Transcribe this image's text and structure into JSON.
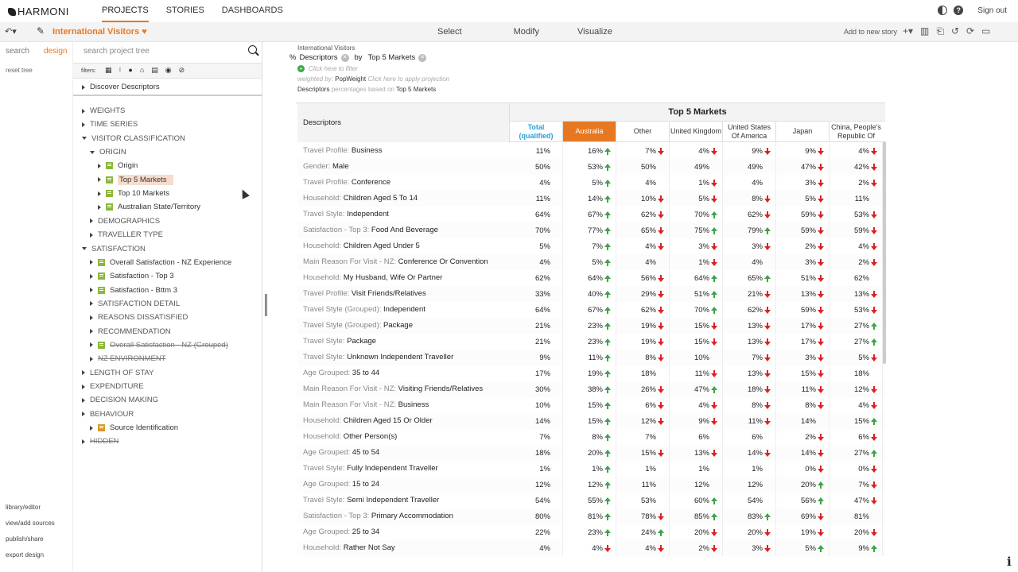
{
  "app": {
    "logo": "HARMONI"
  },
  "nav": {
    "items": [
      "PROJECTS",
      "STORIES",
      "DASHBOARDS"
    ],
    "active": 0
  },
  "topright": {
    "signout": "Sign out"
  },
  "toolbar": {
    "history_icon": "↶▾",
    "project_title": "International Visitors",
    "heart": "♥",
    "modes": [
      "Select",
      "Modify",
      "Visualize"
    ],
    "add_story": "Add to new story"
  },
  "left": {
    "tab_search": "search",
    "tab_design": "design",
    "reset_tree": "reset tree",
    "links": [
      "library/editor",
      "view/add sources",
      "publish/share",
      "export design"
    ]
  },
  "treepanel": {
    "search_placeholder": "search project tree",
    "filters_label": "filters:",
    "first_item": "Discover Descriptors",
    "items": [
      {
        "label": "WEIGHTS",
        "indent": 0,
        "type": "folder",
        "open": false
      },
      {
        "label": "TIME SERIES",
        "indent": 0,
        "type": "folder",
        "open": false
      },
      {
        "label": "VISITOR CLASSIFICATION",
        "indent": 0,
        "type": "folder",
        "open": true
      },
      {
        "label": "ORIGIN",
        "indent": 1,
        "type": "folder",
        "open": true
      },
      {
        "label": "Origin",
        "indent": 2,
        "type": "var",
        "open": false
      },
      {
        "label": "Top 5 Markets",
        "indent": 2,
        "type": "var",
        "open": false,
        "selected": true
      },
      {
        "label": "Top 10 Markets",
        "indent": 2,
        "type": "var",
        "open": false
      },
      {
        "label": "Australian State/Territory",
        "indent": 2,
        "type": "var",
        "open": false
      },
      {
        "label": "DEMOGRAPHICS",
        "indent": 1,
        "type": "folder",
        "open": false
      },
      {
        "label": "TRAVELLER TYPE",
        "indent": 1,
        "type": "folder",
        "open": false
      },
      {
        "label": "SATISFACTION",
        "indent": 0,
        "type": "folder",
        "open": true
      },
      {
        "label": "Overall Satisfaction - NZ Experience",
        "indent": 1,
        "type": "var",
        "open": false
      },
      {
        "label": "Satisfaction - Top 3",
        "indent": 1,
        "type": "var",
        "open": false
      },
      {
        "label": "Satisfaction - Bttm 3",
        "indent": 1,
        "type": "var",
        "open": false
      },
      {
        "label": "SATISFACTION DETAIL",
        "indent": 1,
        "type": "folder",
        "open": false
      },
      {
        "label": "REASONS DISSATISFIED",
        "indent": 1,
        "type": "folder",
        "open": false
      },
      {
        "label": "RECOMMENDATION",
        "indent": 1,
        "type": "folder",
        "open": false
      },
      {
        "label": "Overall Satisfaction - NZ (Grouped)",
        "indent": 1,
        "type": "var",
        "open": false,
        "strike": true
      },
      {
        "label": "NZ ENVIRONMENT",
        "indent": 1,
        "type": "folder",
        "open": false,
        "strike": true
      },
      {
        "label": "LENGTH OF STAY",
        "indent": 0,
        "type": "folder",
        "open": false
      },
      {
        "label": "EXPENDITURE",
        "indent": 0,
        "type": "folder",
        "open": false
      },
      {
        "label": "DECISION MAKING",
        "indent": 0,
        "type": "folder",
        "open": false
      },
      {
        "label": "BEHAVIOUR",
        "indent": 0,
        "type": "folder",
        "open": false
      },
      {
        "label": "Source Identification",
        "indent": 1,
        "type": "multi",
        "open": false
      },
      {
        "label": "HIDDEN",
        "indent": 0,
        "type": "folder",
        "open": false,
        "strike": true
      }
    ]
  },
  "query": {
    "title": "International Visitors",
    "pct": "%",
    "row_var": "Descriptors",
    "by": "by",
    "col_var": "Top 5 Markets",
    "filter_hint": "Click here to filter",
    "weighted_pre": "weighted by:",
    "weight": "PopWeight",
    "projection_hint": "Click here to apply projection",
    "desc_pre": "Descriptors",
    "desc_mid": "percentages based on",
    "desc_base": "Top 5 Markets"
  },
  "table": {
    "row_header": "Descriptors",
    "banner": "Top 5 Markets",
    "columns": [
      "Total (qualified)",
      "Australia",
      "Other",
      "United Kingdom",
      "United States Of America",
      "Japan",
      "China, People's Republic Of"
    ],
    "rows": [
      {
        "pre": "Travel Profile:",
        "label": "Business",
        "cells": [
          [
            "11%",
            ""
          ],
          [
            "16%",
            "up"
          ],
          [
            "7%",
            "down"
          ],
          [
            "4%",
            "down"
          ],
          [
            "9%",
            "down"
          ],
          [
            "9%",
            "down"
          ],
          [
            "4%",
            "down"
          ]
        ]
      },
      {
        "pre": "Gender:",
        "label": "Male",
        "cells": [
          [
            "50%",
            ""
          ],
          [
            "53%",
            "up"
          ],
          [
            "50%",
            ""
          ],
          [
            "49%",
            ""
          ],
          [
            "49%",
            ""
          ],
          [
            "47%",
            "down"
          ],
          [
            "42%",
            "down"
          ]
        ]
      },
      {
        "pre": "Travel Profile:",
        "label": "Conference",
        "cells": [
          [
            "4%",
            ""
          ],
          [
            "5%",
            "up"
          ],
          [
            "4%",
            ""
          ],
          [
            "1%",
            "down"
          ],
          [
            "4%",
            ""
          ],
          [
            "3%",
            "down"
          ],
          [
            "2%",
            "down"
          ]
        ]
      },
      {
        "pre": "Household:",
        "label": "Children Aged 5 To 14",
        "cells": [
          [
            "11%",
            ""
          ],
          [
            "14%",
            "up"
          ],
          [
            "10%",
            "down"
          ],
          [
            "5%",
            "down"
          ],
          [
            "8%",
            "down"
          ],
          [
            "5%",
            "down"
          ],
          [
            "11%",
            ""
          ]
        ]
      },
      {
        "pre": "Travel Style:",
        "label": "Independent",
        "cells": [
          [
            "64%",
            ""
          ],
          [
            "67%",
            "up"
          ],
          [
            "62%",
            "down"
          ],
          [
            "70%",
            "up"
          ],
          [
            "62%",
            "down"
          ],
          [
            "59%",
            "down"
          ],
          [
            "53%",
            "down"
          ]
        ]
      },
      {
        "pre": "Satisfaction - Top 3:",
        "label": "Food And Beverage",
        "cells": [
          [
            "70%",
            ""
          ],
          [
            "77%",
            "up"
          ],
          [
            "65%",
            "down"
          ],
          [
            "75%",
            "up"
          ],
          [
            "79%",
            "up"
          ],
          [
            "59%",
            "down"
          ],
          [
            "59%",
            "down"
          ]
        ]
      },
      {
        "pre": "Household:",
        "label": "Children Aged Under 5",
        "cells": [
          [
            "5%",
            ""
          ],
          [
            "7%",
            "up"
          ],
          [
            "4%",
            "down"
          ],
          [
            "3%",
            "down"
          ],
          [
            "3%",
            "down"
          ],
          [
            "2%",
            "down"
          ],
          [
            "4%",
            "down"
          ]
        ]
      },
      {
        "pre": "Main Reason For Visit - NZ:",
        "label": "Conference Or Convention",
        "cells": [
          [
            "4%",
            ""
          ],
          [
            "5%",
            "up"
          ],
          [
            "4%",
            ""
          ],
          [
            "1%",
            "down"
          ],
          [
            "4%",
            ""
          ],
          [
            "3%",
            "down"
          ],
          [
            "2%",
            "down"
          ]
        ]
      },
      {
        "pre": "Household:",
        "label": "My Husband, Wife Or Partner",
        "cells": [
          [
            "62%",
            ""
          ],
          [
            "64%",
            "up"
          ],
          [
            "56%",
            "down"
          ],
          [
            "64%",
            "up"
          ],
          [
            "65%",
            "up"
          ],
          [
            "51%",
            "down"
          ],
          [
            "62%",
            ""
          ]
        ]
      },
      {
        "pre": "Travel Profile:",
        "label": "Visit Friends/Relatives",
        "cells": [
          [
            "33%",
            ""
          ],
          [
            "40%",
            "up"
          ],
          [
            "29%",
            "down"
          ],
          [
            "51%",
            "up"
          ],
          [
            "21%",
            "down"
          ],
          [
            "13%",
            "down"
          ],
          [
            "13%",
            "down"
          ]
        ]
      },
      {
        "pre": "Travel Style (Grouped):",
        "label": "Independent",
        "cells": [
          [
            "64%",
            ""
          ],
          [
            "67%",
            "up"
          ],
          [
            "62%",
            "down"
          ],
          [
            "70%",
            "up"
          ],
          [
            "62%",
            "down"
          ],
          [
            "59%",
            "down"
          ],
          [
            "53%",
            "down"
          ]
        ]
      },
      {
        "pre": "Travel Style (Grouped):",
        "label": "Package",
        "cells": [
          [
            "21%",
            ""
          ],
          [
            "23%",
            "up"
          ],
          [
            "19%",
            "down"
          ],
          [
            "15%",
            "down"
          ],
          [
            "13%",
            "down"
          ],
          [
            "17%",
            "down"
          ],
          [
            "27%",
            "up"
          ]
        ]
      },
      {
        "pre": "Travel Style:",
        "label": "Package",
        "cells": [
          [
            "21%",
            ""
          ],
          [
            "23%",
            "up"
          ],
          [
            "19%",
            "down"
          ],
          [
            "15%",
            "down"
          ],
          [
            "13%",
            "down"
          ],
          [
            "17%",
            "down"
          ],
          [
            "27%",
            "up"
          ]
        ]
      },
      {
        "pre": "Travel Style:",
        "label": "Unknown Independent Traveller",
        "cells": [
          [
            "9%",
            ""
          ],
          [
            "11%",
            "up"
          ],
          [
            "8%",
            "down"
          ],
          [
            "10%",
            ""
          ],
          [
            "7%",
            "down"
          ],
          [
            "3%",
            "down"
          ],
          [
            "5%",
            "down"
          ]
        ]
      },
      {
        "pre": "Age Grouped:",
        "label": "35 to 44",
        "cells": [
          [
            "17%",
            ""
          ],
          [
            "19%",
            "up"
          ],
          [
            "18%",
            ""
          ],
          [
            "11%",
            "down"
          ],
          [
            "13%",
            "down"
          ],
          [
            "15%",
            "down"
          ],
          [
            "18%",
            ""
          ]
        ]
      },
      {
        "pre": "Main Reason For Visit - NZ:",
        "label": "Visiting Friends/Relatives",
        "cells": [
          [
            "30%",
            ""
          ],
          [
            "38%",
            "up"
          ],
          [
            "26%",
            "down"
          ],
          [
            "47%",
            "up"
          ],
          [
            "18%",
            "down"
          ],
          [
            "11%",
            "down"
          ],
          [
            "12%",
            "down"
          ]
        ]
      },
      {
        "pre": "Main Reason For Visit - NZ:",
        "label": "Business",
        "cells": [
          [
            "10%",
            ""
          ],
          [
            "15%",
            "up"
          ],
          [
            "6%",
            "down"
          ],
          [
            "4%",
            "down"
          ],
          [
            "8%",
            "down"
          ],
          [
            "8%",
            "down"
          ],
          [
            "4%",
            "down"
          ]
        ]
      },
      {
        "pre": "Household:",
        "label": "Children Aged 15 Or Older",
        "cells": [
          [
            "14%",
            ""
          ],
          [
            "15%",
            "up"
          ],
          [
            "12%",
            "down"
          ],
          [
            "9%",
            "down"
          ],
          [
            "11%",
            "down"
          ],
          [
            "14%",
            ""
          ],
          [
            "15%",
            "up"
          ]
        ]
      },
      {
        "pre": "Household:",
        "label": "Other Person(s)",
        "cells": [
          [
            "7%",
            ""
          ],
          [
            "8%",
            "up"
          ],
          [
            "7%",
            ""
          ],
          [
            "6%",
            ""
          ],
          [
            "6%",
            ""
          ],
          [
            "2%",
            "down"
          ],
          [
            "6%",
            "down"
          ]
        ]
      },
      {
        "pre": "Age Grouped:",
        "label": "45 to 54",
        "cells": [
          [
            "18%",
            ""
          ],
          [
            "20%",
            "up"
          ],
          [
            "15%",
            "down"
          ],
          [
            "13%",
            "down"
          ],
          [
            "14%",
            "down"
          ],
          [
            "14%",
            "down"
          ],
          [
            "27%",
            "up"
          ]
        ]
      },
      {
        "pre": "Travel Style:",
        "label": "Fully Independent Traveller",
        "cells": [
          [
            "1%",
            ""
          ],
          [
            "1%",
            "up"
          ],
          [
            "1%",
            ""
          ],
          [
            "1%",
            ""
          ],
          [
            "1%",
            ""
          ],
          [
            "0%",
            "down"
          ],
          [
            "0%",
            "down"
          ]
        ]
      },
      {
        "pre": "Age Grouped:",
        "label": "15 to 24",
        "cells": [
          [
            "12%",
            ""
          ],
          [
            "12%",
            "up"
          ],
          [
            "11%",
            ""
          ],
          [
            "12%",
            ""
          ],
          [
            "12%",
            ""
          ],
          [
            "20%",
            "up"
          ],
          [
            "7%",
            "down"
          ]
        ]
      },
      {
        "pre": "Travel Style:",
        "label": "Semi Independent Traveller",
        "cells": [
          [
            "54%",
            ""
          ],
          [
            "55%",
            "up"
          ],
          [
            "53%",
            ""
          ],
          [
            "60%",
            "up"
          ],
          [
            "54%",
            ""
          ],
          [
            "56%",
            "up"
          ],
          [
            "47%",
            "down"
          ]
        ]
      },
      {
        "pre": "Satisfaction - Top 3:",
        "label": "Primary Accommodation",
        "cells": [
          [
            "80%",
            ""
          ],
          [
            "81%",
            "up"
          ],
          [
            "78%",
            "down"
          ],
          [
            "85%",
            "up"
          ],
          [
            "83%",
            "up"
          ],
          [
            "69%",
            "down"
          ],
          [
            "81%",
            ""
          ]
        ]
      },
      {
        "pre": "Age Grouped:",
        "label": "25 to 34",
        "cells": [
          [
            "22%",
            ""
          ],
          [
            "23%",
            "up"
          ],
          [
            "24%",
            "up"
          ],
          [
            "20%",
            "down"
          ],
          [
            "20%",
            "down"
          ],
          [
            "19%",
            "down"
          ],
          [
            "20%",
            "down"
          ]
        ]
      },
      {
        "pre": "Household:",
        "label": "Rather Not Say",
        "cells": [
          [
            "4%",
            ""
          ],
          [
            "4%",
            "down"
          ],
          [
            "4%",
            "down"
          ],
          [
            "2%",
            "down"
          ],
          [
            "3%",
            "down"
          ],
          [
            "5%",
            "up"
          ],
          [
            "9%",
            "up"
          ]
        ]
      }
    ]
  }
}
